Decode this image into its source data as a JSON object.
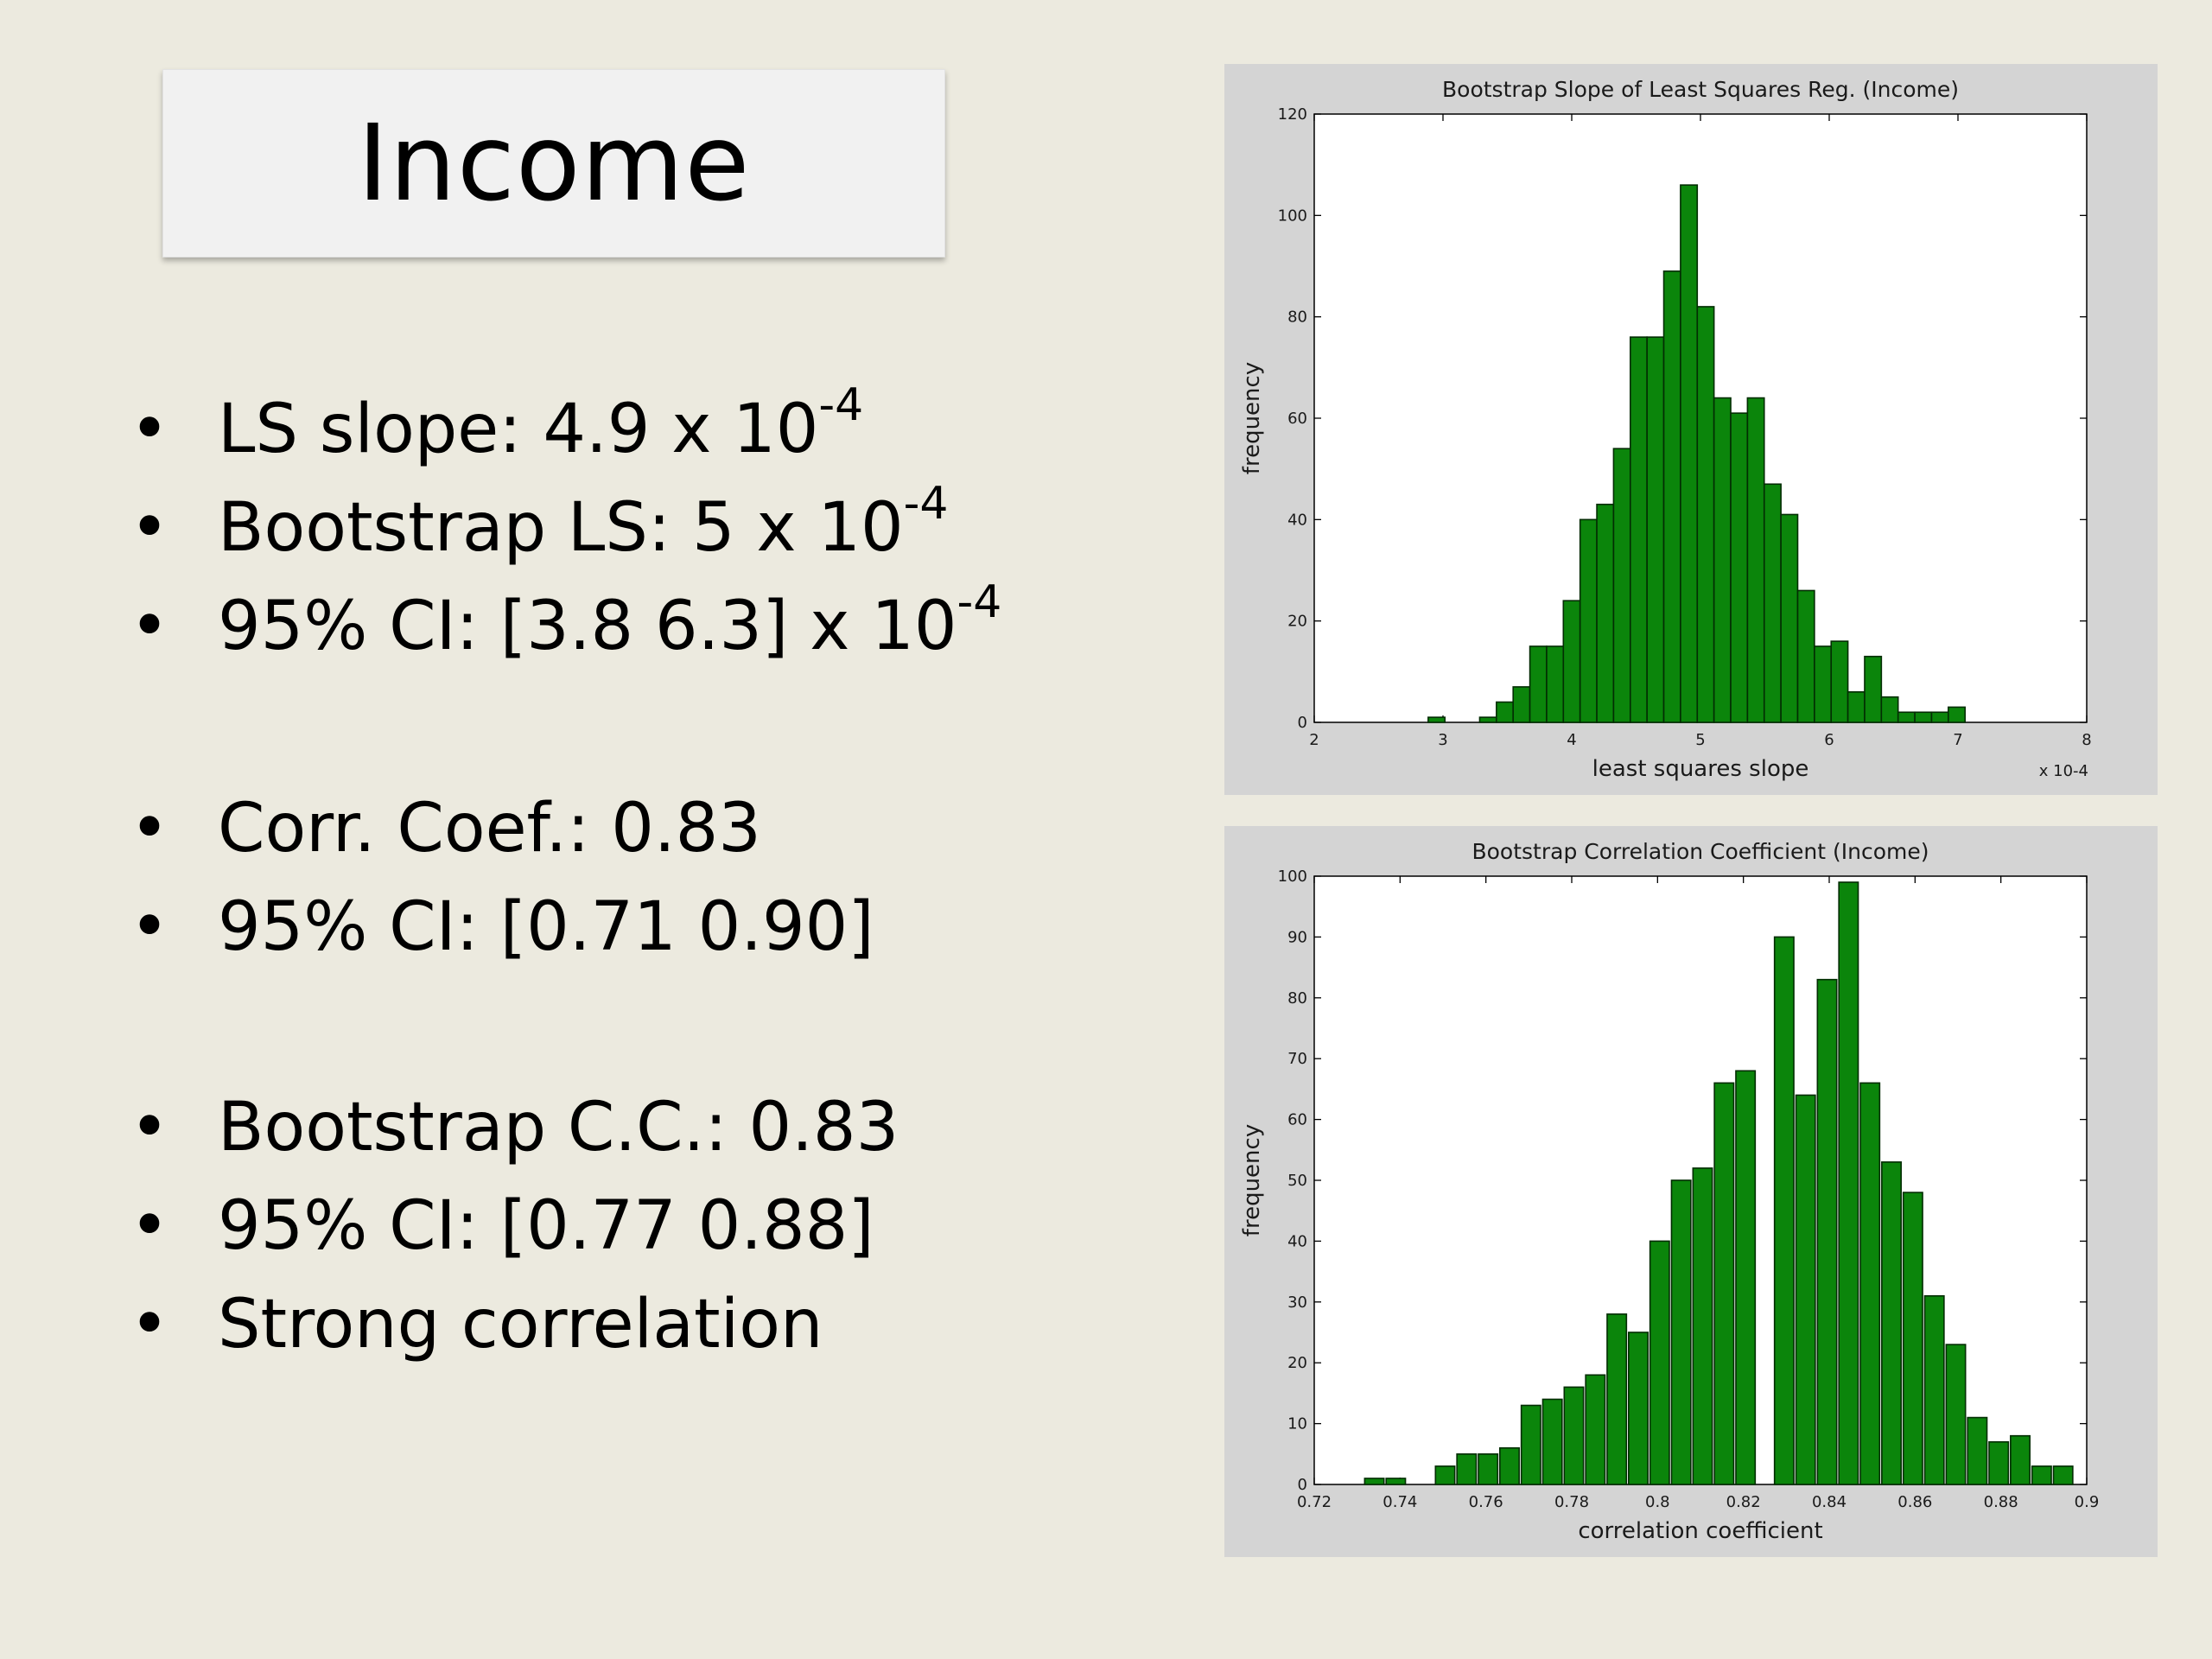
{
  "slide": {
    "title": "Income",
    "group1": [
      {
        "text": "LS slope: 4.9 x 10",
        "sup": "-4"
      },
      {
        "text": "Bootstrap LS: 5 x 10",
        "sup": "-4"
      },
      {
        "text": "95% CI: [3.8  6.3] x 10",
        "sup": "-4"
      }
    ],
    "group2": [
      {
        "text": "Corr. Coef.: 0.83",
        "sup": ""
      },
      {
        "text": "95% CI: [0.71  0.90]",
        "sup": ""
      }
    ],
    "group3": [
      {
        "text": "Bootstrap C.C.: 0.83",
        "sup": ""
      },
      {
        "text": "95% CI: [0.77  0.88]",
        "sup": ""
      },
      {
        "text": "Strong correlation",
        "sup": ""
      }
    ],
    "bullet_char": "•"
  },
  "colors": {
    "bar": "#0B850B",
    "bar_edge": "#032D03",
    "panel": "#D4D4D4",
    "background": "#ECEADF"
  },
  "chart_data": [
    {
      "type": "bar",
      "title": "Bootstrap Slope of Least Squares Reg. (Income)",
      "xlabel": "least squares slope",
      "ylabel": "frequency",
      "x_multiplier": "x 10-4",
      "xlim": [
        2,
        8
      ],
      "ylim": [
        0,
        120
      ],
      "xticks": [
        2,
        3,
        4,
        5,
        6,
        7,
        8
      ],
      "yticks": [
        0,
        20,
        40,
        60,
        80,
        100,
        120
      ],
      "bins": [
        {
          "x": 2.95,
          "v": 1
        },
        {
          "x": 3.35,
          "v": 1
        },
        {
          "x": 3.48,
          "v": 4
        },
        {
          "x": 3.61,
          "v": 7
        },
        {
          "x": 3.74,
          "v": 15
        },
        {
          "x": 3.87,
          "v": 15
        },
        {
          "x": 4.0,
          "v": 24
        },
        {
          "x": 4.13,
          "v": 40
        },
        {
          "x": 4.26,
          "v": 43
        },
        {
          "x": 4.39,
          "v": 54
        },
        {
          "x": 4.52,
          "v": 76
        },
        {
          "x": 4.65,
          "v": 76
        },
        {
          "x": 4.78,
          "v": 89
        },
        {
          "x": 4.91,
          "v": 106
        },
        {
          "x": 5.04,
          "v": 82
        },
        {
          "x": 5.17,
          "v": 64
        },
        {
          "x": 5.3,
          "v": 61
        },
        {
          "x": 5.43,
          "v": 64
        },
        {
          "x": 5.56,
          "v": 47
        },
        {
          "x": 5.69,
          "v": 41
        },
        {
          "x": 5.82,
          "v": 26
        },
        {
          "x": 5.95,
          "v": 15
        },
        {
          "x": 6.08,
          "v": 16
        },
        {
          "x": 6.21,
          "v": 6
        },
        {
          "x": 6.34,
          "v": 13
        },
        {
          "x": 6.47,
          "v": 5
        },
        {
          "x": 6.6,
          "v": 2
        },
        {
          "x": 6.73,
          "v": 2
        },
        {
          "x": 6.86,
          "v": 2
        },
        {
          "x": 6.99,
          "v": 3
        }
      ],
      "bin_width": 0.13
    },
    {
      "type": "bar",
      "title": "Bootstrap Correlation Coefficient (Income)",
      "xlabel": "correlation coefficient",
      "ylabel": "frequency",
      "xlim": [
        0.72,
        0.9
      ],
      "ylim": [
        0,
        100
      ],
      "xticks": [
        0.72,
        0.74,
        0.76,
        0.78,
        0.8,
        0.82,
        0.84,
        0.86,
        0.88,
        0.9
      ],
      "yticks": [
        0,
        10,
        20,
        30,
        40,
        50,
        60,
        70,
        80,
        90,
        100
      ],
      "bins": [
        {
          "x": 0.734,
          "v": 1
        },
        {
          "x": 0.739,
          "v": 1
        },
        {
          "x": 0.7505,
          "v": 3
        },
        {
          "x": 0.7555,
          "v": 5
        },
        {
          "x": 0.7605,
          "v": 5
        },
        {
          "x": 0.7655,
          "v": 6
        },
        {
          "x": 0.7705,
          "v": 13
        },
        {
          "x": 0.7755,
          "v": 14
        },
        {
          "x": 0.7805,
          "v": 16
        },
        {
          "x": 0.7855,
          "v": 18
        },
        {
          "x": 0.7905,
          "v": 28
        },
        {
          "x": 0.7955,
          "v": 25
        },
        {
          "x": 0.8005,
          "v": 40
        },
        {
          "x": 0.8055,
          "v": 50
        },
        {
          "x": 0.8105,
          "v": 52
        },
        {
          "x": 0.8155,
          "v": 66
        },
        {
          "x": 0.8205,
          "v": 68
        },
        {
          "x": 0.8295,
          "v": 90
        },
        {
          "x": 0.8345,
          "v": 64
        },
        {
          "x": 0.8395,
          "v": 83
        },
        {
          "x": 0.8445,
          "v": 99
        },
        {
          "x": 0.8495,
          "v": 66
        },
        {
          "x": 0.8545,
          "v": 53
        },
        {
          "x": 0.8595,
          "v": 48
        },
        {
          "x": 0.8645,
          "v": 31
        },
        {
          "x": 0.8695,
          "v": 23
        },
        {
          "x": 0.8745,
          "v": 11
        },
        {
          "x": 0.8795,
          "v": 7
        },
        {
          "x": 0.8845,
          "v": 8
        },
        {
          "x": 0.8895,
          "v": 3
        },
        {
          "x": 0.8945,
          "v": 3
        }
      ],
      "bin_width": 0.0045
    }
  ]
}
